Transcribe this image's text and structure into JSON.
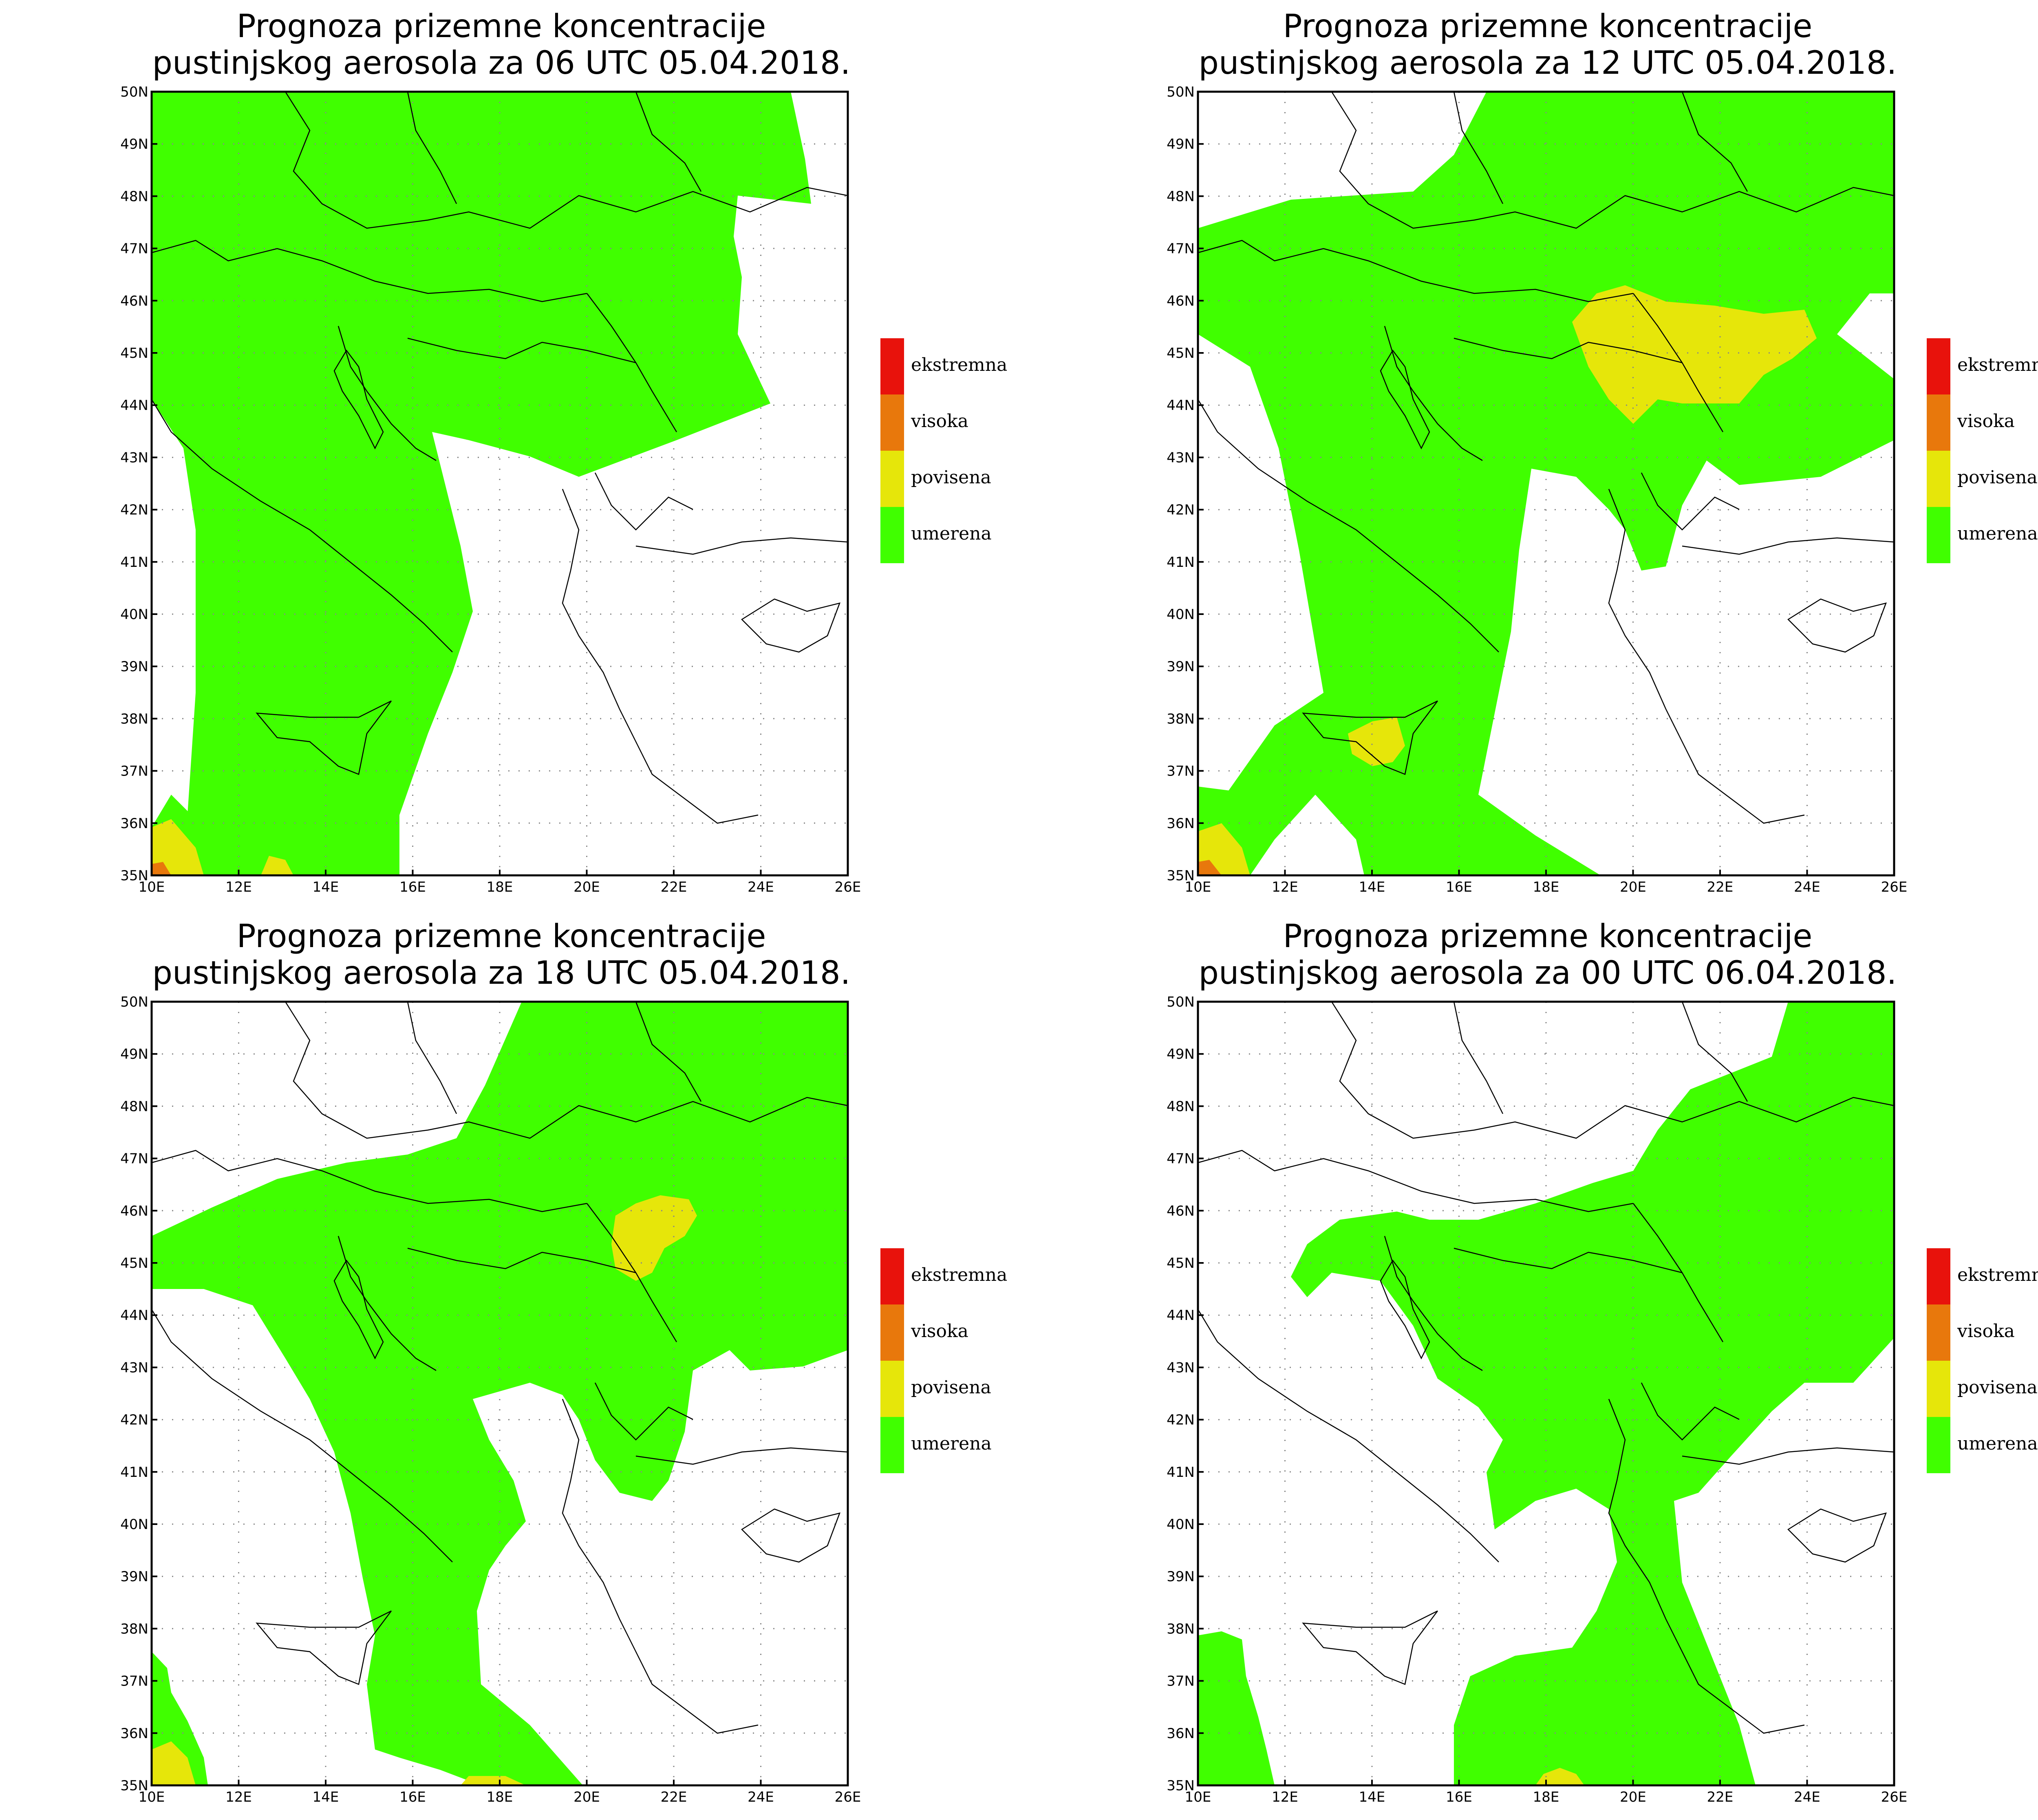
{
  "panels": [
    {
      "title_line1": "Prognoza prizemne koncentracije",
      "title_line2": "pustinjskog aerosola za 06 UTC 05.04.2018."
    },
    {
      "title_line1": "Prognoza prizemne koncentracije",
      "title_line2": "pustinjskog aerosola za 12 UTC 05.04.2018."
    },
    {
      "title_line1": "Prognoza prizemne koncentracije",
      "title_line2": "pustinjskog aerosola za 18 UTC 05.04.2018."
    },
    {
      "title_line1": "Prognoza prizemne koncentracije",
      "title_line2": "pustinjskog aerosola za 00 UTC 06.04.2018."
    }
  ],
  "legend": [
    {
      "label": "ekstremna",
      "color": "#e8120c"
    },
    {
      "label": "visoka",
      "color": "#e8780c"
    },
    {
      "label": "povisena",
      "color": "#e6e60a"
    },
    {
      "label": "umerena",
      "color": "#40ff00"
    }
  ],
  "axes": {
    "lat_labels": [
      "50N",
      "49N",
      "48N",
      "47N",
      "46N",
      "45N",
      "44N",
      "43N",
      "42N",
      "41N",
      "40N",
      "39N",
      "38N",
      "37N",
      "36N",
      "35N"
    ],
    "lon_labels": [
      "10E",
      "12E",
      "14E",
      "16E",
      "18E",
      "20E",
      "22E",
      "24E",
      "26E"
    ],
    "lat_range": [
      35,
      50
    ],
    "lon_range": [
      10,
      26
    ]
  },
  "colors": {
    "moderate": "#40ff00",
    "elevated": "#e6e60a",
    "high": "#e8780c",
    "extreme": "#e8120c"
  }
}
